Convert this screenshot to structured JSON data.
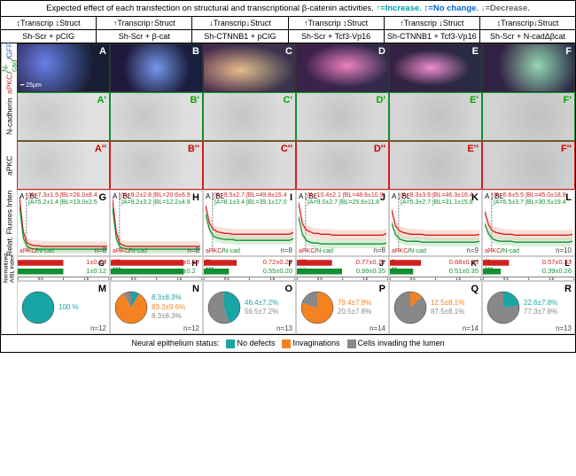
{
  "legend_top": "Expected effect of each transfection on structural and transcriptional β-catenin activities.",
  "legend_arrows": {
    "up": "↑=Increase.",
    "same": "↕=No change.",
    "down": "↓=Decrease."
  },
  "columns": [
    {
      "effect_top": "↕Transcrip ↕Struct",
      "condition": "Sh-Scr + pCIG",
      "letter": "A"
    },
    {
      "effect_top": "↑Transcrip↑Struct",
      "condition": "Sh-Scr + β-cat",
      "letter": "B"
    },
    {
      "effect_top": "↓Transcrip↓Struct",
      "condition": "Sh-CTNNB1 + pCIG",
      "letter": "C"
    },
    {
      "effect_top": "↑Transcrip ↕Struct",
      "condition": "Sh-Scr + Tcf3-Vp16",
      "letter": "D"
    },
    {
      "effect_top": "↑Transcrip ↓Struct",
      "condition": "Sh-CTNNB1 + Tcf3-Vp16",
      "letter": "E"
    },
    {
      "effect_top": "↕Transcrip↓Struct",
      "condition": "Sh-Scr + N-cadΔβcat",
      "letter": "F"
    }
  ],
  "row_labels": {
    "merge": "aPKC/N-cad/GFP",
    "ncad": "N-cadherin",
    "apkc": "aPKC",
    "chart": "Relat. Fluores Inten",
    "bar": "Normalized A/BL index"
  },
  "scalebar": "25µm",
  "chart_legend": "aPKC/N-cad",
  "colors": {
    "apkc": "#d02020",
    "ncad": "#109030",
    "teal": "#1aa5a5",
    "orange": "#f58220",
    "grey": "#888888",
    "band_apkc": "#f5c0b0",
    "band_ncad": "#b8e0b8"
  },
  "charts": [
    {
      "letter": "G",
      "ia": "∫A=7.3±1.5",
      "ibl_a": "∫BL=26.0±8.4",
      "ia_n": "∫A=5.2±1.4",
      "ibl_n": "∫BL=13.0±2.5",
      "n": "n=8",
      "apkc_vals": [
        65,
        25,
        12,
        10,
        9,
        9,
        8,
        8,
        8,
        8,
        8,
        8,
        8,
        8,
        8,
        8,
        8,
        8,
        8,
        8,
        8,
        8,
        8,
        8
      ],
      "ncad_vals": [
        55,
        18,
        8,
        6,
        5,
        5,
        5,
        5,
        5,
        5,
        5,
        5,
        5,
        5,
        5,
        5,
        5,
        5,
        5,
        5,
        5,
        5,
        5,
        5
      ]
    },
    {
      "letter": "H",
      "ia": "∫A=9.2±2.8",
      "ibl_a": "∫BL=20.6±6.9",
      "ia_n": "∫A=9.2±3.2",
      "ibl_n": "∫BL=12.2±4.9",
      "n": "n=8",
      "apkc_vals": [
        62,
        24,
        11,
        9,
        8,
        8,
        8,
        8,
        8,
        8,
        8,
        8,
        8,
        8,
        8,
        8,
        8,
        8,
        8,
        8,
        8,
        8,
        8,
        8
      ],
      "ncad_vals": [
        52,
        17,
        7,
        6,
        5,
        5,
        5,
        5,
        5,
        5,
        5,
        5,
        5,
        5,
        5,
        5,
        5,
        5,
        5,
        5,
        5,
        5,
        5,
        5
      ]
    },
    {
      "letter": "I",
      "ia": "∫A=9.5±2.7",
      "ibl_a": "∫BL=49.8±15.4",
      "ia_n": "∫A=8.1±3.4",
      "ibl_n": "∫BL=39.1±17.0",
      "n": "n=8",
      "apkc_vals": [
        55,
        35,
        28,
        25,
        24,
        23,
        23,
        22,
        22,
        22,
        22,
        22,
        22,
        22,
        22,
        22,
        22,
        22,
        22,
        22,
        22,
        22,
        22,
        24
      ],
      "ncad_vals": [
        45,
        28,
        20,
        18,
        17,
        16,
        16,
        16,
        15,
        15,
        15,
        15,
        15,
        15,
        15,
        15,
        15,
        15,
        15,
        15,
        15,
        15,
        15,
        17
      ]
    },
    {
      "letter": "J",
      "ia": "∫A=10.4±2.1",
      "ibl_a": "∫BL=48.6±10.9",
      "ia_n": "∫A=9.0±2.7",
      "ibl_n": "∫BL=25.6±11.8",
      "n": "n=8",
      "apkc_vals": [
        58,
        34,
        27,
        25,
        23,
        23,
        22,
        22,
        22,
        21,
        21,
        21,
        21,
        21,
        21,
        21,
        21,
        21,
        21,
        21,
        21,
        21,
        21,
        23
      ],
      "ncad_vals": [
        42,
        22,
        15,
        13,
        12,
        12,
        11,
        11,
        11,
        11,
        11,
        11,
        11,
        11,
        11,
        11,
        11,
        11,
        11,
        11,
        11,
        11,
        11,
        12
      ]
    },
    {
      "letter": "K",
      "ia": "∫A=8.3±3.9",
      "ibl_a": "∫BL=46.3±16.4",
      "ia_n": "∫A=5.3±2.7",
      "ibl_n": "∫BL=31.1±15.8",
      "n": "n=9",
      "apkc_vals": [
        50,
        32,
        26,
        24,
        23,
        22,
        22,
        22,
        22,
        21,
        21,
        21,
        21,
        21,
        21,
        21,
        21,
        21,
        21,
        21,
        21,
        21,
        21,
        22
      ],
      "ncad_vals": [
        35,
        22,
        17,
        15,
        14,
        14,
        14,
        14,
        13,
        13,
        13,
        13,
        13,
        13,
        13,
        13,
        13,
        13,
        13,
        13,
        13,
        13,
        13,
        14
      ]
    },
    {
      "letter": "L",
      "ia": "∫A=6.6±5.5",
      "ibl_a": "∫BL=45.0±18.9",
      "ia_n": "∫A=5.5±3.7",
      "ibl_n": "∫BL=30.5±19.4",
      "n": "n=10",
      "apkc_vals": [
        48,
        33,
        26,
        24,
        23,
        22,
        22,
        22,
        21,
        21,
        21,
        21,
        21,
        21,
        21,
        21,
        21,
        21,
        21,
        21,
        21,
        21,
        21,
        22
      ],
      "ncad_vals": [
        34,
        23,
        17,
        15,
        14,
        14,
        14,
        14,
        13,
        13,
        13,
        13,
        13,
        13,
        13,
        13,
        13,
        13,
        13,
        13,
        13,
        13,
        13,
        14
      ]
    }
  ],
  "bars": [
    {
      "letter": "G'",
      "apkc": "1±0.14",
      "ncad": "1±0.12",
      "apkc_val": 1.0,
      "ncad_val": 1.0,
      "stars_a": "",
      "stars_n": ""
    },
    {
      "letter": "H'",
      "apkc": "1.6±0.32",
      "ncad": "1.6±0.2",
      "apkc_val": 1.6,
      "ncad_val": 1.6,
      "stars_a": "***",
      "stars_n": "***"
    },
    {
      "letter": "I'",
      "apkc": "0.72±0.21",
      "ncad": "0.55±0.20",
      "apkc_val": 0.72,
      "ncad_val": 0.55,
      "stars_a": "**",
      "stars_n": "***"
    },
    {
      "letter": "J'",
      "apkc": "0.77±0.11",
      "ncad": "0.99±0.35",
      "apkc_val": 0.77,
      "ncad_val": 0.99,
      "stars_a": "***",
      "stars_n": "ns"
    },
    {
      "letter": "K'",
      "apkc": "0.68±0.35",
      "ncad": "0.51±0.35",
      "apkc_val": 0.68,
      "ncad_val": 0.51,
      "stars_a": "*",
      "stars_n": "**"
    },
    {
      "letter": "L'",
      "apkc": "0.57±0.33",
      "ncad": "0.39±0.26",
      "apkc_val": 0.57,
      "ncad_val": 0.39,
      "stars_a": "**",
      "stars_n": "***"
    }
  ],
  "pies": [
    {
      "letter": "M",
      "n": "n=12",
      "slices": [
        {
          "c": "#1aa5a5",
          "v": 100
        }
      ],
      "texts": [
        {
          "c": "#1aa5a5",
          "t": "100 %"
        }
      ]
    },
    {
      "letter": "N",
      "n": "n=12",
      "slices": [
        {
          "c": "#1aa5a5",
          "v": 8.3
        },
        {
          "c": "#f58220",
          "v": 83.3
        },
        {
          "c": "#888888",
          "v": 8.3
        }
      ],
      "texts": [
        {
          "c": "#1aa5a5",
          "t": "8.3±8.3%"
        },
        {
          "c": "#f58220",
          "t": "83.3±9.6%"
        },
        {
          "c": "#888",
          "t": "8.3±8.3%"
        }
      ]
    },
    {
      "letter": "O",
      "n": "n=13",
      "slices": [
        {
          "c": "#1aa5a5",
          "v": 46.4
        },
        {
          "c": "#888888",
          "v": 56.5
        }
      ],
      "texts": [
        {
          "c": "#1aa5a5",
          "t": "46.4±7.2%"
        },
        {
          "c": "#888",
          "t": "56.5±7.2%"
        }
      ]
    },
    {
      "letter": "P",
      "n": "n=14",
      "slices": [
        {
          "c": "#f58220",
          "v": 79.4
        },
        {
          "c": "#888888",
          "v": 20.5
        }
      ],
      "texts": [
        {
          "c": "#f58220",
          "t": "79.4±7.8%"
        },
        {
          "c": "#888",
          "t": "20.5±7.8%"
        }
      ]
    },
    {
      "letter": "Q",
      "n": "n=14",
      "slices": [
        {
          "c": "#f58220",
          "v": 12.5
        },
        {
          "c": "#888888",
          "v": 87.5
        }
      ],
      "texts": [
        {
          "c": "#f58220",
          "t": "12.5±8.1%"
        },
        {
          "c": "#888",
          "t": "87.5±8.1%"
        }
      ]
    },
    {
      "letter": "R",
      "n": "n=13",
      "slices": [
        {
          "c": "#1aa5a5",
          "v": 22.6
        },
        {
          "c": "#888888",
          "v": 77.3
        }
      ],
      "texts": [
        {
          "c": "#1aa5a5",
          "t": "22.6±7.8%"
        },
        {
          "c": "#888",
          "t": "77.3±7.8%"
        }
      ]
    }
  ],
  "bottom_legend": {
    "label": "Neural epithelium status:",
    "items": [
      {
        "c": "#1aa5a5",
        "t": "No defects"
      },
      {
        "c": "#f58220",
        "t": "Invaginations"
      },
      {
        "c": "#888888",
        "t": "Cells invading the lumen"
      }
    ]
  },
  "xaxis_ticks": [
    "0",
    "0.5",
    "1",
    "1.5",
    "2"
  ]
}
